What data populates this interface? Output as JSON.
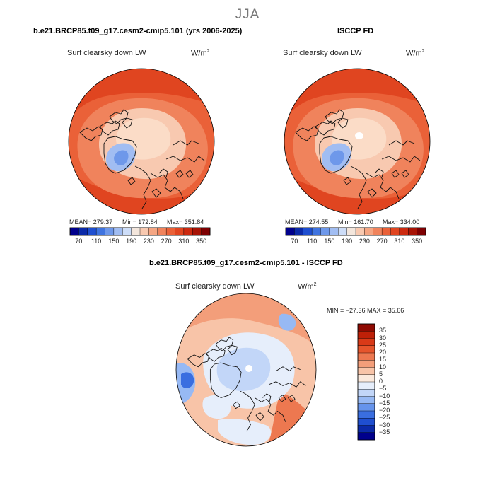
{
  "figure": {
    "season": "JJA",
    "variable": "Surf clearsky down LW",
    "units": "W/m",
    "units_exp": "2"
  },
  "panels": [
    {
      "title": "b.e21.BRCP85.f09_g17.cesm2-cmip5.101 (yrs 2006-2025)",
      "mean": "MEAN= 279.37",
      "min": "Min= 172.84",
      "max": "Max= 351.84"
    },
    {
      "title": "ISCCP FD",
      "mean": "MEAN= 274.55",
      "min": "Min= 161.70",
      "max": "Max= 334.00"
    },
    {
      "title": "b.e21.BRCP85.f09_g17.cesm2-cmip5.101 - ISCCP FD",
      "minmax": "MIN = −27.36 MAX =  35.66"
    }
  ],
  "colorbar_abs": {
    "colors": [
      "#00008c",
      "#0b2aa8",
      "#1f4fd0",
      "#3f74e0",
      "#6e98ea",
      "#a1bdf2",
      "#cdddf8",
      "#f3e6dc",
      "#f8c9b0",
      "#f5a683",
      "#f0835c",
      "#ea6138",
      "#e04520",
      "#cc2a10",
      "#a71406",
      "#7e0002"
    ],
    "labels": [
      "70",
      "110",
      "150",
      "190",
      "230",
      "270",
      "310",
      "350"
    ]
  },
  "colorbar_diff": {
    "colors": [
      "#00008c",
      "#0b2aa8",
      "#1f4fd0",
      "#3a6ee0",
      "#6694ec",
      "#97b9f4",
      "#c2d6f8",
      "#e6eefb",
      "#fbe9dc",
      "#f8c4a8",
      "#f39e7a",
      "#ed7850",
      "#e6552c",
      "#d93a18",
      "#be2008",
      "#8f0a02"
    ],
    "labels": [
      "35",
      "30",
      "25",
      "20",
      "15",
      "10",
      "5",
      "0",
      "−5",
      "−10",
      "−15",
      "−20",
      "−25",
      "−30",
      "−35"
    ]
  },
  "map_colors": {
    "ocean_warm": "#ea6138",
    "ocean_warmer": "#e04520",
    "mid": "#f0835c",
    "arctic": "#f8c9b0",
    "arctic_core": "#fbdcc7",
    "greenland": "#a1bdf2",
    "greenland_core": "#6e98ea",
    "diff_base": "#f8c4a8",
    "diff_white": "#e6eefb",
    "diff_blue": "#c2d6f8",
    "diff_blue2": "#97b9f4",
    "diff_blue3": "#3a6ee0",
    "diff_red": "#f39e7a",
    "diff_red2": "#ed7850"
  }
}
